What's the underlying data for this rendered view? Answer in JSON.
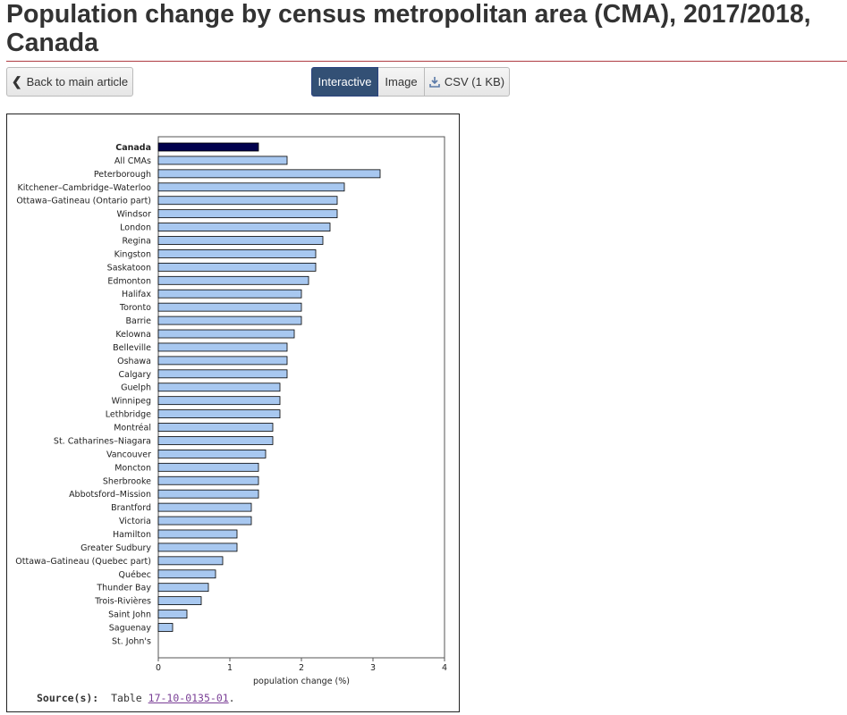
{
  "header": {
    "title": "Population change by census metropolitan area (CMA), 2017/2018, Canada"
  },
  "toolbar": {
    "back_label": "Back to main article",
    "interactive_label": "Interactive",
    "image_label": "Image",
    "csv_label": "CSV (1 KB)"
  },
  "source": {
    "label": "Source(s):",
    "prefix": "Table ",
    "link_text": "17-10-0135-01",
    "suffix": "."
  },
  "colors": {
    "highlight_bar": "#00004d",
    "bar": "#a8c8f0",
    "bar_stroke": "#000000",
    "title_rule": "#af3c43",
    "active_tab": "#335075"
  },
  "chart_data": {
    "type": "bar",
    "orientation": "horizontal",
    "categories": [
      "Canada",
      "All CMAs",
      "Peterborough",
      "Kitchener–Cambridge–Waterloo",
      "Ottawa–Gatineau (Ontario part)",
      "Windsor",
      "London",
      "Regina",
      "Kingston",
      "Saskatoon",
      "Edmonton",
      "Halifax",
      "Toronto",
      "Barrie",
      "Kelowna",
      "Belleville",
      "Oshawa",
      "Calgary",
      "Guelph",
      "Winnipeg",
      "Lethbridge",
      "Montréal",
      "St. Catharines–Niagara",
      "Vancouver",
      "Moncton",
      "Sherbrooke",
      "Abbotsford–Mission",
      "Brantford",
      "Victoria",
      "Hamilton",
      "Greater Sudbury",
      "Ottawa–Gatineau (Quebec part)",
      "Québec",
      "Thunder Bay",
      "Trois-Rivières",
      "Saint John",
      "Saguenay",
      "St. John's"
    ],
    "values": [
      1.4,
      1.8,
      3.1,
      2.6,
      2.5,
      2.5,
      2.4,
      2.3,
      2.2,
      2.2,
      2.1,
      2.0,
      2.0,
      2.0,
      1.9,
      1.8,
      1.8,
      1.8,
      1.7,
      1.7,
      1.7,
      1.6,
      1.6,
      1.5,
      1.4,
      1.4,
      1.4,
      1.3,
      1.3,
      1.1,
      1.1,
      0.9,
      0.8,
      0.7,
      0.6,
      0.4,
      0.2,
      0.0
    ],
    "highlight": "Canada",
    "xlabel": "population change (%)",
    "ylabel": "",
    "xlim": [
      0,
      4
    ],
    "xticks": [
      "0",
      "1",
      "2",
      "3",
      "4"
    ],
    "grid": false
  }
}
